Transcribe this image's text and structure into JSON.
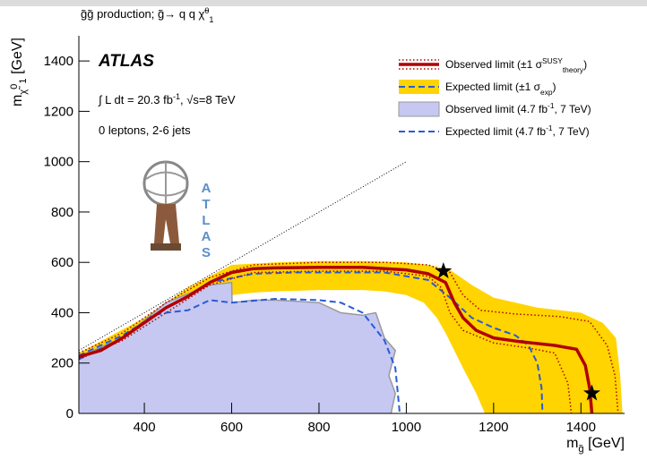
{
  "chart_data": {
    "type": "line",
    "title": "g̃g̃ production; g̃→ q q χ̃^{0}_{1}",
    "x_label": "m_{g̃} [GeV]",
    "y_label": "m_{χ̃}^{0}_{1} [GeV]",
    "annotations": [
      "ATLAS",
      "∫ L dt = 20.3 fb^{-1},  √s=8 TeV",
      "0 leptons, 2-6 jets"
    ],
    "logo_text": "ATLAS",
    "xlim": [
      250,
      1500
    ],
    "ylim": [
      0,
      1500
    ],
    "xticks": [
      400,
      600,
      800,
      1000,
      1200,
      1400
    ],
    "yticks": [
      0,
      200,
      400,
      600,
      800,
      1000,
      1200,
      1400
    ],
    "legend": "upper right",
    "diagonal": {
      "x": [
        250,
        1000
      ],
      "values": [
        250,
        1000
      ]
    },
    "markers": {
      "x": [
        1085,
        1425
      ],
      "values": [
        565,
        80
      ]
    },
    "series": [
      {
        "name": "Observed limit (±1 σ^{SUSY}_{theory})",
        "color": "#b00000",
        "style": "line",
        "x": [
          250,
          300,
          350,
          400,
          450,
          500,
          550,
          600,
          650,
          700,
          800,
          900,
          1000,
          1050,
          1090,
          1110,
          1130,
          1160,
          1200,
          1260,
          1340,
          1390,
          1410,
          1420,
          1425
        ],
        "values": [
          225,
          250,
          300,
          360,
          420,
          465,
          520,
          560,
          575,
          578,
          580,
          580,
          570,
          555,
          520,
          440,
          380,
          330,
          300,
          285,
          270,
          255,
          190,
          100,
          0
        ],
        "band": {
          "style": "dotted",
          "upper": {
            "x": [
              250,
              350,
              450,
              550,
              650,
              800,
              950,
              1050,
              1100,
              1130,
              1170,
              1250,
              1350,
              1420,
              1460,
              1478,
              1485
            ],
            "values": [
              240,
              320,
              440,
              540,
              590,
              600,
              600,
              590,
              560,
              470,
              410,
              395,
              385,
              365,
              270,
              150,
              0
            ]
          },
          "lower": {
            "x": [
              250,
              350,
              450,
              550,
              650,
              800,
              950,
              1050,
              1080,
              1100,
              1130,
              1200,
              1280,
              1340,
              1370,
              1378
            ],
            "values": [
              215,
              290,
              400,
              510,
              560,
              565,
              565,
              545,
              500,
              400,
              330,
              280,
              260,
              240,
              120,
              0
            ]
          }
        }
      },
      {
        "name": "Expected limit (±1 σ_{exp})",
        "color": "#2a5bd7",
        "style": "dashed",
        "x": [
          250,
          350,
          450,
          550,
          650,
          750,
          850,
          950,
          1050,
          1100,
          1150,
          1200,
          1250,
          1280,
          1300,
          1310,
          1312
        ],
        "values": [
          230,
          310,
          420,
          520,
          555,
          560,
          560,
          560,
          530,
          460,
          380,
          340,
          310,
          270,
          200,
          100,
          0
        ],
        "band": {
          "style": "fill",
          "color": "#ffd400",
          "upper": {
            "x": [
              250,
              400,
              500,
              600,
              700,
              800,
              900,
              1000,
              1050,
              1100,
              1150,
              1200,
              1300,
              1400,
              1450,
              1480,
              1490,
              1495
            ],
            "values": [
              240,
              380,
              500,
              590,
              600,
              605,
              605,
              600,
              590,
              570,
              510,
              460,
              420,
              400,
              360,
              300,
              150,
              0
            ]
          },
          "lower": {
            "x": [
              250,
              400,
              500,
              600,
              650,
              700,
              800,
              900,
              950,
              1000,
              1040,
              1070,
              1090,
              1110,
              1130,
              1160,
              1180
            ],
            "values": [
              215,
              350,
              430,
              470,
              480,
              485,
              490,
              490,
              485,
              470,
              440,
              380,
              320,
              250,
              180,
              80,
              0
            ]
          }
        }
      },
      {
        "name": "Observed limit (4.7 fb^{-1}, 7 TeV)",
        "color": "#c6c8f2",
        "edge": "#999999",
        "style": "area",
        "x": [
          250,
          350,
          450,
          550,
          600,
          601,
          650,
          700,
          750,
          800,
          850,
          900,
          930,
          950,
          975,
          960,
          975,
          965
        ],
        "values": [
          225,
          300,
          440,
          510,
          520,
          440,
          450,
          450,
          445,
          440,
          400,
          390,
          400,
          300,
          250,
          150,
          80,
          0
        ]
      },
      {
        "name": "Expected limit (4.7 fb^{-1}, 7 TeV)",
        "color": "#2a5bd7",
        "style": "dashed",
        "x": [
          250,
          350,
          420,
          450,
          500,
          550,
          600,
          700,
          800,
          850,
          900,
          950,
          975,
          985
        ],
        "values": [
          215,
          300,
          390,
          400,
          410,
          450,
          440,
          455,
          450,
          440,
          400,
          290,
          180,
          0
        ]
      }
    ]
  }
}
